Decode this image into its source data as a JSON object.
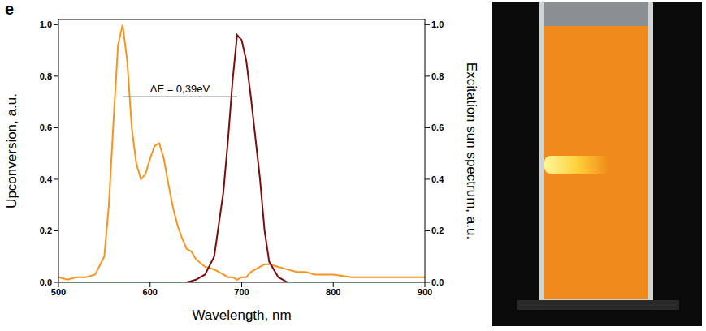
{
  "chart_data": {
    "type": "line",
    "panel_label": "e",
    "x_label": "Wavelength, nm",
    "y_label": "Upconversion, a.u.",
    "y2_label": "Excitation sun spectrum, a.u.",
    "x": [
      500,
      510,
      520,
      530,
      540,
      550,
      555,
      560,
      565,
      570,
      575,
      580,
      585,
      590,
      595,
      600,
      605,
      610,
      615,
      620,
      625,
      630,
      635,
      640,
      645,
      650,
      660,
      670,
      680,
      685,
      690,
      695,
      700,
      705,
      710,
      715,
      720,
      725,
      730,
      740,
      750,
      760,
      770,
      780,
      790,
      800,
      820,
      840,
      860,
      880,
      900
    ],
    "series": [
      {
        "color": "#f7941d",
        "axis": "y",
        "values": [
          0.02,
          0.01,
          0.02,
          0.02,
          0.03,
          0.1,
          0.3,
          0.62,
          0.92,
          1.0,
          0.86,
          0.6,
          0.46,
          0.4,
          0.42,
          0.48,
          0.53,
          0.54,
          0.48,
          0.38,
          0.29,
          0.22,
          0.17,
          0.13,
          0.12,
          0.09,
          0.06,
          0.05,
          0.03,
          0.02,
          0.02,
          0.01,
          0.02,
          0.02,
          0.04,
          0.05,
          0.06,
          0.07,
          0.07,
          0.06,
          0.05,
          0.04,
          0.04,
          0.03,
          0.03,
          0.03,
          0.02,
          0.02,
          0.02,
          0.02,
          0.02
        ]
      },
      {
        "color": "#7b0d0d",
        "axis": "y2",
        "values": [
          0,
          0,
          0,
          0,
          0,
          0,
          0,
          0,
          0,
          0,
          0,
          0,
          0,
          0,
          0,
          0,
          0,
          0,
          0,
          0,
          0,
          0,
          0,
          0,
          0.005,
          0.01,
          0.03,
          0.1,
          0.35,
          0.55,
          0.78,
          0.96,
          0.94,
          0.86,
          0.72,
          0.56,
          0.4,
          0.2,
          0.08,
          0.02,
          0,
          0,
          0,
          0,
          0,
          0,
          0,
          0,
          0,
          0,
          0
        ]
      }
    ],
    "xlim": [
      500,
      900
    ],
    "xticks": [
      500,
      600,
      700,
      800,
      900
    ],
    "ylim": [
      0,
      1.02
    ],
    "yticks": [
      {
        "value": 0,
        "label": "0.0"
      },
      0.2,
      0.4,
      0.6,
      0.8,
      {
        "value": 1,
        "label": "1.0"
      }
    ],
    "y2lim": [
      0,
      1.02
    ],
    "y2ticks": [
      {
        "value": 0,
        "label": "0.0"
      },
      0.2,
      0.4,
      0.6,
      0.8,
      {
        "value": 1,
        "label": "1.0"
      }
    ],
    "annotations": [
      {
        "text": "ΔE = 0,39eV",
        "x": [
          570,
          695
        ],
        "y": 0.72
      }
    ]
  }
}
